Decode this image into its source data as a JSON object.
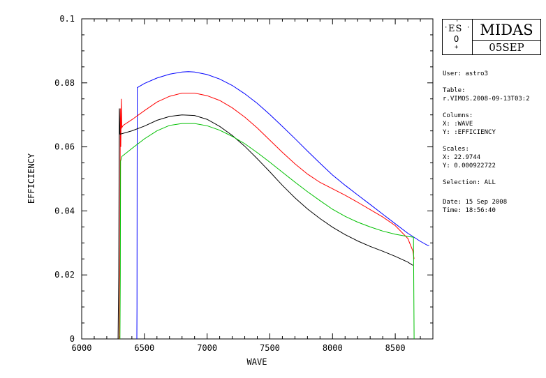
{
  "chart_data": {
    "type": "line",
    "xlabel": "WAVE",
    "ylabel": "EFFICIENCY",
    "xlim": [
      6000,
      8800
    ],
    "ylim": [
      0,
      0.1
    ],
    "x_ticks": [
      "6000",
      "6500",
      "7000",
      "7500",
      "8000",
      "8500"
    ],
    "y_ticks": [
      "0",
      "0.02",
      "0.04",
      "0.06",
      "0.08",
      "0.1"
    ],
    "grid": false,
    "series": [
      {
        "color": "#0000ff",
        "x": [
          6440,
          6441,
          6442,
          6443,
          6500,
          6600,
          6700,
          6800,
          6850,
          6900,
          7000,
          7100,
          7200,
          7300,
          7400,
          7500,
          7600,
          7700,
          7800,
          7900,
          8000,
          8100,
          8200,
          8300,
          8400,
          8500,
          8600,
          8700,
          8760,
          8770
        ],
        "y": [
          0,
          0.01,
          0.05,
          0.0785,
          0.0798,
          0.0815,
          0.0827,
          0.0834,
          0.0835,
          0.0834,
          0.0826,
          0.0812,
          0.0792,
          0.0766,
          0.0736,
          0.0701,
          0.0664,
          0.0626,
          0.0587,
          0.0549,
          0.0512,
          0.048,
          0.045,
          0.042,
          0.039,
          0.036,
          0.033,
          0.0305,
          0.0292,
          0.0292
        ]
      },
      {
        "color": "#ff0000",
        "x": [
          6300,
          6305,
          6308,
          6312,
          6316,
          6320,
          6330,
          6400,
          6500,
          6600,
          6700,
          6800,
          6900,
          7000,
          7100,
          7200,
          7300,
          7400,
          7500,
          7600,
          7700,
          7800,
          7900,
          8000,
          8100,
          8200,
          8300,
          8400,
          8500,
          8600,
          8640,
          8650
        ],
        "y": [
          0,
          0.03,
          0.072,
          0.06,
          0.075,
          0.066,
          0.0667,
          0.0685,
          0.0713,
          0.074,
          0.0758,
          0.0768,
          0.0768,
          0.076,
          0.0745,
          0.0722,
          0.0693,
          0.0659,
          0.0621,
          0.0583,
          0.0547,
          0.0515,
          0.0489,
          0.0469,
          0.0449,
          0.0427,
          0.0404,
          0.0381,
          0.0354,
          0.0314,
          0.0275,
          0.025
        ]
      },
      {
        "color": "#000000",
        "x": [
          6290,
          6295,
          6300,
          6305,
          6310,
          6400,
          6500,
          6600,
          6700,
          6800,
          6900,
          7000,
          7100,
          7200,
          7300,
          7400,
          7500,
          7600,
          7700,
          7800,
          7900,
          8000,
          8100,
          8200,
          8300,
          8400,
          8500,
          8600,
          8640
        ],
        "y": [
          0,
          0.02,
          0.072,
          0.064,
          0.064,
          0.065,
          0.0665,
          0.0683,
          0.0695,
          0.07,
          0.0698,
          0.0686,
          0.0664,
          0.0636,
          0.0602,
          0.0563,
          0.0522,
          0.048,
          0.0441,
          0.0406,
          0.0376,
          0.0349,
          0.0326,
          0.0306,
          0.0289,
          0.0274,
          0.0258,
          0.024,
          0.023
        ]
      },
      {
        "color": "#00c000",
        "x": [
          6305,
          6308,
          6310,
          6320,
          6400,
          6500,
          6600,
          6700,
          6800,
          6900,
          7000,
          7100,
          7200,
          7300,
          7400,
          7500,
          7600,
          7700,
          7800,
          7900,
          8000,
          8100,
          8200,
          8300,
          8400,
          8500,
          8600,
          8640,
          8645,
          8650
        ],
        "y": [
          0,
          0.02,
          0.0555,
          0.057,
          0.0595,
          0.0625,
          0.065,
          0.0667,
          0.0673,
          0.0673,
          0.0666,
          0.0652,
          0.0633,
          0.061,
          0.0582,
          0.0552,
          0.0521,
          0.049,
          0.046,
          0.0432,
          0.0405,
          0.0383,
          0.0365,
          0.035,
          0.0337,
          0.0327,
          0.032,
          0.0318,
          0.0318,
          0.0
        ]
      }
    ]
  },
  "logo": {
    "eso_letters": "ES",
    "eso_o": "O",
    "title": "MIDAS",
    "date": "05SEP"
  },
  "info": {
    "user": "User: astro3",
    "table_label": "Table:",
    "table_value": "r.VIMOS.2008-09-13T03:2",
    "columns_label": "Columns:",
    "columns_x": "X: :WAVE",
    "columns_y": "Y: :EFFICIENCY",
    "scales_label": "Scales:",
    "scales_x": "X: 22.9744",
    "scales_y": "Y: 0.000922722",
    "selection": "Selection:  ALL",
    "date": "Date: 15 Sep 2008",
    "time": "Time: 18:56:40"
  }
}
